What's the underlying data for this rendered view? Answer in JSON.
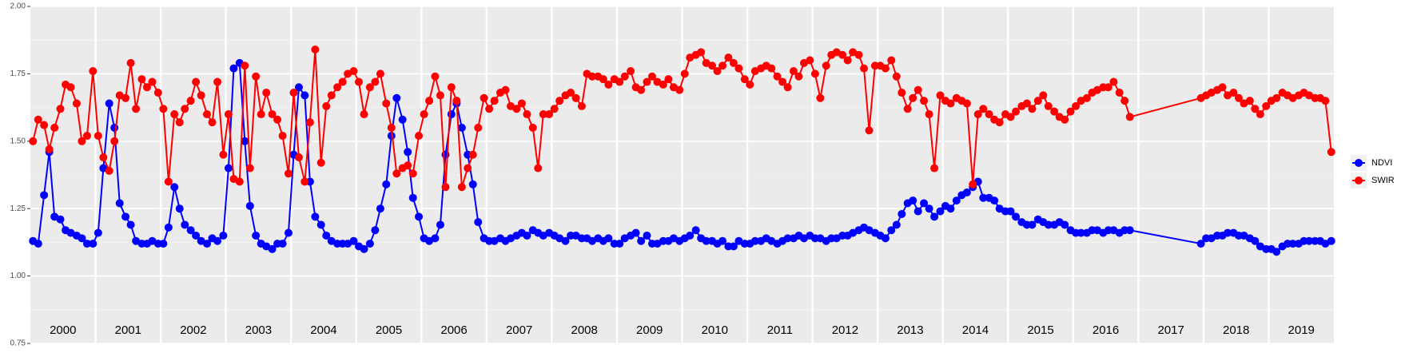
{
  "chart_data": {
    "type": "line",
    "x": [
      2000.04,
      2000.12,
      2000.21,
      2000.29,
      2000.37,
      2000.46,
      2000.54,
      2000.62,
      2000.71,
      2000.79,
      2000.87,
      2000.96,
      2001.04,
      2001.12,
      2001.21,
      2001.29,
      2001.37,
      2001.46,
      2001.54,
      2001.62,
      2001.71,
      2001.79,
      2001.87,
      2001.96,
      2002.04,
      2002.12,
      2002.21,
      2002.29,
      2002.37,
      2002.46,
      2002.54,
      2002.62,
      2002.71,
      2002.79,
      2002.87,
      2002.96,
      2003.04,
      2003.12,
      2003.21,
      2003.29,
      2003.37,
      2003.46,
      2003.54,
      2003.62,
      2003.71,
      2003.79,
      2003.87,
      2003.96,
      2004.04,
      2004.12,
      2004.21,
      2004.29,
      2004.37,
      2004.46,
      2004.54,
      2004.62,
      2004.71,
      2004.79,
      2004.87,
      2004.96,
      2005.04,
      2005.12,
      2005.21,
      2005.29,
      2005.37,
      2005.46,
      2005.54,
      2005.62,
      2005.71,
      2005.79,
      2005.87,
      2005.96,
      2006.04,
      2006.12,
      2006.21,
      2006.29,
      2006.37,
      2006.46,
      2006.54,
      2006.62,
      2006.71,
      2006.79,
      2006.87,
      2006.96,
      2007.04,
      2007.12,
      2007.21,
      2007.29,
      2007.37,
      2007.46,
      2007.54,
      2007.62,
      2007.71,
      2007.79,
      2007.87,
      2007.96,
      2008.04,
      2008.12,
      2008.21,
      2008.29,
      2008.37,
      2008.46,
      2008.54,
      2008.62,
      2008.71,
      2008.79,
      2008.87,
      2008.96,
      2009.04,
      2009.12,
      2009.21,
      2009.29,
      2009.37,
      2009.46,
      2009.54,
      2009.62,
      2009.71,
      2009.79,
      2009.87,
      2009.96,
      2010.04,
      2010.12,
      2010.21,
      2010.29,
      2010.37,
      2010.46,
      2010.54,
      2010.62,
      2010.71,
      2010.79,
      2010.87,
      2010.96,
      2011.04,
      2011.12,
      2011.21,
      2011.29,
      2011.37,
      2011.46,
      2011.54,
      2011.62,
      2011.71,
      2011.79,
      2011.87,
      2011.96,
      2012.04,
      2012.12,
      2012.21,
      2012.29,
      2012.37,
      2012.46,
      2012.54,
      2012.62,
      2012.71,
      2012.79,
      2012.87,
      2012.96,
      2013.04,
      2013.12,
      2013.21,
      2013.29,
      2013.37,
      2013.46,
      2013.54,
      2013.62,
      2013.71,
      2013.79,
      2013.87,
      2013.96,
      2014.04,
      2014.12,
      2014.21,
      2014.29,
      2014.37,
      2014.46,
      2014.54,
      2014.62,
      2014.71,
      2014.79,
      2014.87,
      2014.96,
      2015.04,
      2015.12,
      2015.21,
      2015.29,
      2015.37,
      2015.46,
      2015.54,
      2015.62,
      2015.71,
      2015.79,
      2015.87,
      2015.96,
      2016.04,
      2016.12,
      2016.21,
      2016.29,
      2016.37,
      2016.46,
      2016.54,
      2016.62,
      2016.71,
      2016.79,
      2016.87,
      2017.96,
      2018.04,
      2018.12,
      2018.21,
      2018.29,
      2018.37,
      2018.46,
      2018.54,
      2018.62,
      2018.71,
      2018.79,
      2018.87,
      2018.96,
      2019.04,
      2019.12,
      2019.21,
      2019.29,
      2019.37,
      2019.46,
      2019.54,
      2019.62,
      2019.71,
      2019.79,
      2019.87,
      2019.96
    ],
    "series": [
      {
        "name": "NDVI",
        "color": "#0000ff",
        "values": [
          1.13,
          1.12,
          1.3,
          1.46,
          1.22,
          1.21,
          1.17,
          1.16,
          1.15,
          1.14,
          1.12,
          1.12,
          1.16,
          1.4,
          1.64,
          1.55,
          1.27,
          1.22,
          1.19,
          1.13,
          1.12,
          1.12,
          1.13,
          1.12,
          1.12,
          1.18,
          1.33,
          1.25,
          1.19,
          1.17,
          1.15,
          1.13,
          1.12,
          1.14,
          1.13,
          1.15,
          1.4,
          1.77,
          1.79,
          1.5,
          1.26,
          1.15,
          1.12,
          1.11,
          1.1,
          1.12,
          1.12,
          1.16,
          1.45,
          1.7,
          1.67,
          1.35,
          1.22,
          1.19,
          1.15,
          1.13,
          1.12,
          1.12,
          1.12,
          1.13,
          1.11,
          1.1,
          1.12,
          1.17,
          1.25,
          1.34,
          1.52,
          1.66,
          1.58,
          1.46,
          1.29,
          1.22,
          1.14,
          1.13,
          1.14,
          1.19,
          1.45,
          1.6,
          1.64,
          1.55,
          1.45,
          1.34,
          1.2,
          1.14,
          1.13,
          1.13,
          1.14,
          1.13,
          1.14,
          1.15,
          1.16,
          1.15,
          1.17,
          1.16,
          1.15,
          1.16,
          1.15,
          1.14,
          1.13,
          1.15,
          1.15,
          1.14,
          1.14,
          1.13,
          1.14,
          1.13,
          1.14,
          1.12,
          1.12,
          1.14,
          1.15,
          1.16,
          1.13,
          1.15,
          1.12,
          1.12,
          1.13,
          1.13,
          1.14,
          1.13,
          1.14,
          1.15,
          1.17,
          1.14,
          1.13,
          1.13,
          1.12,
          1.13,
          1.11,
          1.11,
          1.13,
          1.12,
          1.12,
          1.13,
          1.13,
          1.14,
          1.13,
          1.12,
          1.13,
          1.14,
          1.14,
          1.15,
          1.14,
          1.15,
          1.14,
          1.14,
          1.13,
          1.14,
          1.14,
          1.15,
          1.15,
          1.16,
          1.17,
          1.18,
          1.17,
          1.16,
          1.15,
          1.14,
          1.17,
          1.19,
          1.23,
          1.27,
          1.28,
          1.24,
          1.27,
          1.25,
          1.22,
          1.24,
          1.26,
          1.25,
          1.28,
          1.3,
          1.31,
          1.33,
          1.35,
          1.29,
          1.29,
          1.28,
          1.25,
          1.24,
          1.24,
          1.22,
          1.2,
          1.19,
          1.19,
          1.21,
          1.2,
          1.19,
          1.19,
          1.2,
          1.19,
          1.17,
          1.16,
          1.16,
          1.16,
          1.17,
          1.17,
          1.16,
          1.17,
          1.17,
          1.16,
          1.17,
          1.17,
          1.12,
          1.14,
          1.14,
          1.15,
          1.15,
          1.16,
          1.16,
          1.15,
          1.15,
          1.14,
          1.13,
          1.11,
          1.1,
          1.1,
          1.09,
          1.11,
          1.12,
          1.12,
          1.12,
          1.13,
          1.13,
          1.13,
          1.13,
          1.12,
          1.13
        ]
      },
      {
        "name": "SWIR",
        "color": "#ff0000",
        "values": [
          1.5,
          1.58,
          1.56,
          1.47,
          1.55,
          1.62,
          1.71,
          1.7,
          1.64,
          1.5,
          1.52,
          1.76,
          1.52,
          1.44,
          1.39,
          1.5,
          1.67,
          1.66,
          1.79,
          1.62,
          1.73,
          1.7,
          1.72,
          1.68,
          1.62,
          1.35,
          1.6,
          1.57,
          1.62,
          1.65,
          1.72,
          1.67,
          1.6,
          1.57,
          1.72,
          1.45,
          1.6,
          1.36,
          1.35,
          1.78,
          1.4,
          1.74,
          1.6,
          1.68,
          1.6,
          1.58,
          1.52,
          1.38,
          1.68,
          1.44,
          1.35,
          1.57,
          1.84,
          1.42,
          1.63,
          1.67,
          1.7,
          1.72,
          1.75,
          1.76,
          1.72,
          1.6,
          1.7,
          1.72,
          1.75,
          1.64,
          1.55,
          1.38,
          1.4,
          1.41,
          1.38,
          1.52,
          1.6,
          1.65,
          1.74,
          1.67,
          1.33,
          1.7,
          1.65,
          1.33,
          1.4,
          1.45,
          1.55,
          1.66,
          1.62,
          1.65,
          1.68,
          1.69,
          1.63,
          1.62,
          1.64,
          1.6,
          1.55,
          1.4,
          1.6,
          1.6,
          1.62,
          1.65,
          1.67,
          1.68,
          1.66,
          1.63,
          1.75,
          1.74,
          1.74,
          1.73,
          1.71,
          1.73,
          1.72,
          1.74,
          1.76,
          1.7,
          1.69,
          1.72,
          1.74,
          1.72,
          1.71,
          1.73,
          1.7,
          1.69,
          1.75,
          1.81,
          1.82,
          1.83,
          1.79,
          1.78,
          1.76,
          1.78,
          1.81,
          1.79,
          1.77,
          1.73,
          1.71,
          1.76,
          1.77,
          1.78,
          1.77,
          1.74,
          1.72,
          1.7,
          1.76,
          1.74,
          1.79,
          1.8,
          1.75,
          1.66,
          1.78,
          1.82,
          1.83,
          1.82,
          1.8,
          1.83,
          1.82,
          1.77,
          1.54,
          1.78,
          1.78,
          1.77,
          1.8,
          1.74,
          1.68,
          1.62,
          1.66,
          1.69,
          1.65,
          1.6,
          1.4,
          1.67,
          1.65,
          1.64,
          1.66,
          1.65,
          1.64,
          1.34,
          1.6,
          1.62,
          1.6,
          1.58,
          1.57,
          1.6,
          1.59,
          1.61,
          1.63,
          1.64,
          1.62,
          1.65,
          1.67,
          1.63,
          1.61,
          1.59,
          1.58,
          1.61,
          1.63,
          1.65,
          1.66,
          1.68,
          1.69,
          1.7,
          1.7,
          1.72,
          1.68,
          1.65,
          1.59,
          1.66,
          1.67,
          1.68,
          1.69,
          1.7,
          1.67,
          1.68,
          1.66,
          1.64,
          1.65,
          1.62,
          1.6,
          1.63,
          1.65,
          1.66,
          1.68,
          1.67,
          1.66,
          1.67,
          1.68,
          1.67,
          1.66,
          1.66,
          1.65,
          1.46
        ]
      }
    ],
    "xlim": [
      2000,
      2020
    ],
    "xticks": [
      {
        "value": 2000.5,
        "label": "2000"
      },
      {
        "value": 2001.5,
        "label": "2001"
      },
      {
        "value": 2002.5,
        "label": "2002"
      },
      {
        "value": 2003.5,
        "label": "2003"
      },
      {
        "value": 2004.5,
        "label": "2004"
      },
      {
        "value": 2005.5,
        "label": "2005"
      },
      {
        "value": 2006.5,
        "label": "2006"
      },
      {
        "value": 2007.5,
        "label": "2007"
      },
      {
        "value": 2008.5,
        "label": "2008"
      },
      {
        "value": 2009.5,
        "label": "2009"
      },
      {
        "value": 2010.5,
        "label": "2010"
      },
      {
        "value": 2011.5,
        "label": "2011"
      },
      {
        "value": 2012.5,
        "label": "2012"
      },
      {
        "value": 2013.5,
        "label": "2013"
      },
      {
        "value": 2014.5,
        "label": "2014"
      },
      {
        "value": 2015.5,
        "label": "2015"
      },
      {
        "value": 2016.5,
        "label": "2016"
      },
      {
        "value": 2017.5,
        "label": "2017"
      },
      {
        "value": 2018.5,
        "label": "2018"
      },
      {
        "value": 2019.5,
        "label": "2019"
      }
    ],
    "ylim": [
      0.75,
      2.0
    ],
    "yticks": [
      {
        "value": 0.75,
        "label": "0.75"
      },
      {
        "value": 1,
        "label": "1.00"
      },
      {
        "value": 1.25,
        "label": "1.25"
      },
      {
        "value": 1.5,
        "label": "1.50"
      },
      {
        "value": 1.75,
        "label": "1.75"
      },
      {
        "value": 2,
        "label": "2.00"
      }
    ],
    "grid": true,
    "legend": "right"
  }
}
